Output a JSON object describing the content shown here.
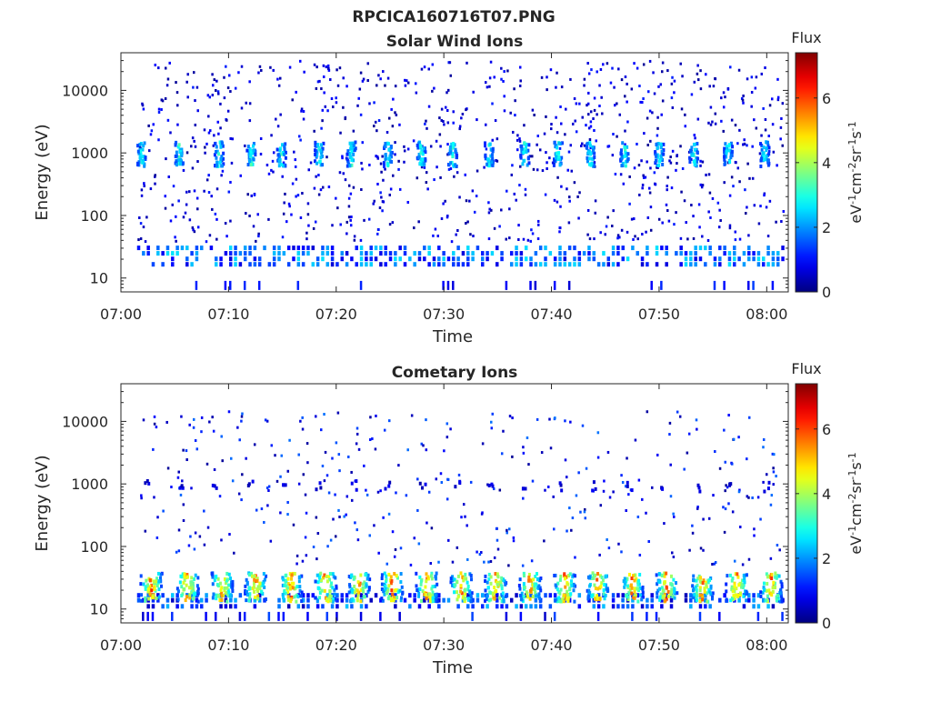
{
  "chart_data": [
    {
      "type": "heatmap",
      "figure_title": "RPCICA160716T07.PNG",
      "title": "Solar Wind Ions",
      "xlabel": "Time",
      "ylabel": "Energy (eV)",
      "x_ticks": [
        "07:00",
        "07:10",
        "07:20",
        "07:30",
        "07:40",
        "07:50",
        "08:00"
      ],
      "y_scale": "log",
      "y_ticks": [
        "10",
        "100",
        "1000",
        "10000"
      ],
      "xlim": [
        "07:00",
        "08:02"
      ],
      "ylim": [
        6,
        40000
      ],
      "colorbar": {
        "label": "Flux",
        "unit": "eV-1cm-2sr-1s-1",
        "ticks": [
          0,
          2,
          4,
          6
        ],
        "range": [
          0,
          7.4
        ],
        "colormap": "jet"
      },
      "features": [
        {
          "description": "periodic high-flux bursts",
          "energy_eV": 1000,
          "flux_peak": 3.5,
          "times_min": [
            1.8,
            5.3,
            9,
            12,
            14.8,
            18.3,
            21.3,
            24.7,
            27.8,
            30.7,
            34.1,
            37.4,
            40.5,
            43.5,
            46.7,
            49.9,
            53.1,
            56.3,
            59.7
          ]
        },
        {
          "description": "continuous low-energy band",
          "energy_eV": 25,
          "flux_peak": 2.5
        }
      ]
    },
    {
      "type": "heatmap",
      "title": "Cometary Ions",
      "xlabel": "Time",
      "ylabel": "Energy (eV)",
      "x_ticks": [
        "07:00",
        "07:10",
        "07:20",
        "07:30",
        "07:40",
        "07:50",
        "08:00"
      ],
      "y_scale": "log",
      "y_ticks": [
        "10",
        "100",
        "1000",
        "10000"
      ],
      "xlim": [
        "07:00",
        "08:02"
      ],
      "ylim": [
        6,
        40000
      ],
      "colorbar": {
        "label": "Flux",
        "unit": "eV-1cm-2sr-1s-1",
        "ticks": [
          0,
          2,
          4,
          6
        ],
        "range": [
          0,
          7.4
        ],
        "colormap": "jet"
      },
      "features": [
        {
          "description": "periodic high-flux bursts",
          "energy_eV": 25,
          "flux_peak": 6.5,
          "times_min": [
            2.7,
            6.1,
            9.3,
            12.4,
            15.7,
            18.9,
            22,
            25.1,
            28.3,
            31.5,
            34.7,
            37.9,
            41.1,
            44.2,
            47.4,
            50.6,
            53.9,
            57.1,
            60.3
          ]
        },
        {
          "description": "periodic low-flux bursts",
          "energy_eV": 1000,
          "flux_peak": 1.0
        }
      ]
    }
  ]
}
